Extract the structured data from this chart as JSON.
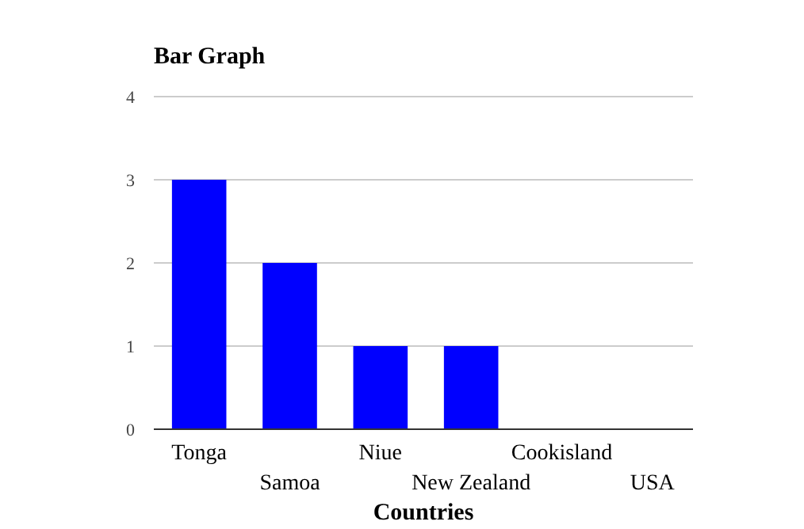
{
  "chart_data": {
    "type": "bar",
    "title": "Bar Graph",
    "xlabel": "Countries",
    "categories": [
      "Tonga",
      "Samoa",
      "Niue",
      "New Zealand",
      "Cookisland",
      "USA"
    ],
    "values": [
      3,
      2,
      1,
      1,
      0,
      0
    ],
    "color": "#0000ff",
    "ylim": [
      0,
      4
    ],
    "yticks": [
      0,
      1,
      2,
      3,
      4
    ],
    "grid": "y"
  }
}
